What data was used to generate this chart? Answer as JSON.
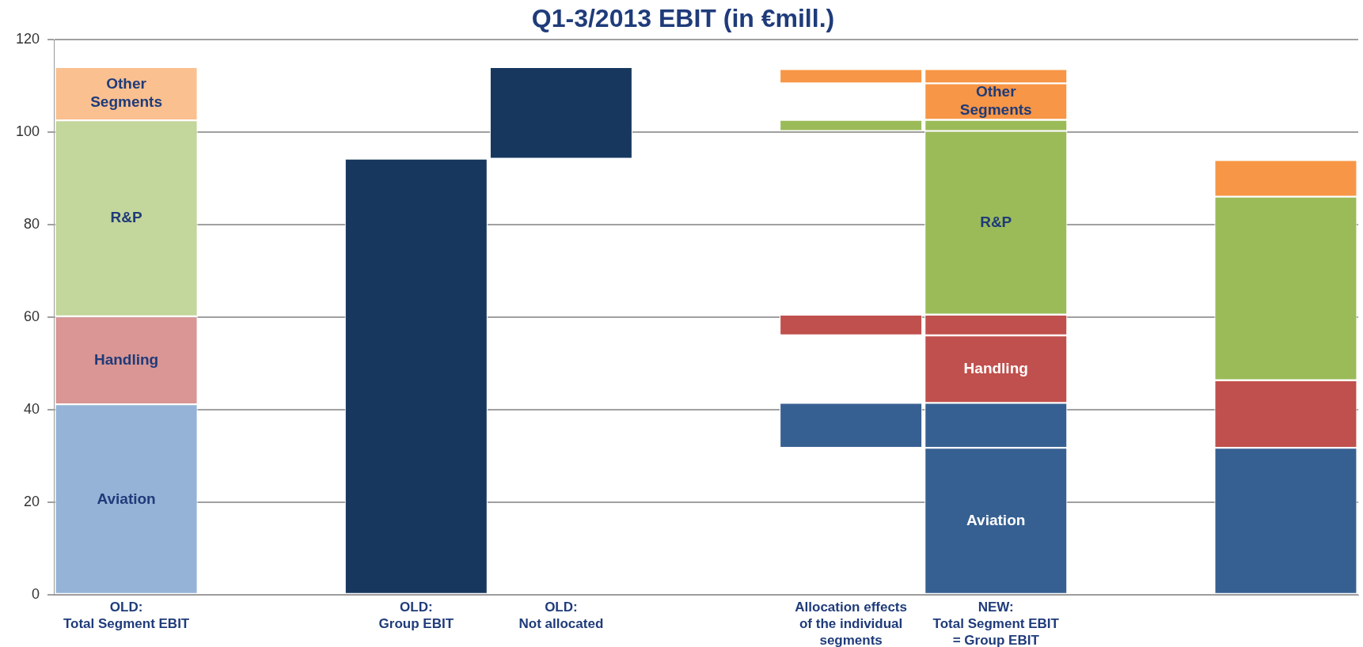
{
  "chart_data": {
    "type": "bar",
    "title": "Q1-3/2013 EBIT (in €mill.)",
    "categories": [
      "OLD:\nTotal Segment EBIT",
      null,
      "OLD:\nGroup EBIT",
      "OLD:\nNot allocated",
      null,
      "Allocation effects\nof the individual segments",
      "NEW:\nTotal Segment EBIT = Group EBIT",
      null,
      null
    ],
    "series": [
      {
        "name": "Aviation",
        "color": "#376092",
        "colors": [
          "#95b3d7",
          null,
          null,
          null,
          null,
          null,
          "#376092",
          null,
          null
        ],
        "base": [
          0,
          null,
          null,
          null,
          null,
          null,
          0,
          null,
          null
        ],
        "values": [
          41.2,
          null,
          null,
          null,
          null,
          null,
          31.8,
          null,
          null
        ]
      },
      {
        "color": "#376092",
        "base": [
          null,
          null,
          null,
          null,
          null,
          31.8,
          31.8,
          null,
          null
        ],
        "values": [
          null,
          null,
          null,
          null,
          null,
          9.7,
          9.7,
          null,
          null
        ]
      },
      {
        "color": "#376092",
        "base": [
          null,
          null,
          null,
          null,
          null,
          null,
          null,
          null,
          0
        ],
        "values": [
          null,
          null,
          null,
          null,
          null,
          null,
          null,
          null,
          31.8
        ]
      },
      {
        "name": "Handling",
        "color": "#c0504d",
        "colors": [
          "#d99694",
          null,
          null,
          null,
          null,
          null,
          "#c0504d",
          null,
          null
        ],
        "base": [
          41.2,
          null,
          null,
          null,
          null,
          null,
          41.5,
          null,
          null
        ],
        "values": [
          19.0,
          null,
          null,
          null,
          null,
          null,
          14.6,
          null,
          null
        ]
      },
      {
        "color": "#c0504d",
        "base": [
          null,
          null,
          null,
          null,
          null,
          56.1,
          56.1,
          null,
          null
        ],
        "values": [
          null,
          null,
          null,
          null,
          null,
          4.5,
          4.5,
          null,
          null
        ]
      },
      {
        "color": "#c0504d",
        "base": [
          null,
          null,
          null,
          null,
          null,
          null,
          null,
          null,
          31.8
        ],
        "values": [
          null,
          null,
          null,
          null,
          null,
          null,
          null,
          null,
          14.6
        ]
      },
      {
        "name": "R&P",
        "color": "#9bbb59",
        "colors": [
          "#c3d69b",
          null,
          null,
          null,
          null,
          null,
          "#9bbb59",
          null,
          null
        ],
        "base": [
          60.2,
          null,
          null,
          null,
          null,
          null,
          60.6,
          null,
          null
        ],
        "values": [
          42.4,
          null,
          null,
          null,
          null,
          null,
          39.7,
          null,
          null
        ]
      },
      {
        "color": "#9bbb59",
        "base": [
          null,
          null,
          null,
          null,
          null,
          100.3,
          100.3,
          null,
          null
        ],
        "values": [
          null,
          null,
          null,
          null,
          null,
          2.4,
          2.4,
          null,
          null
        ]
      },
      {
        "color": "#9bbb59",
        "base": [
          null,
          null,
          null,
          null,
          null,
          null,
          null,
          null,
          46.4
        ],
        "values": [
          null,
          null,
          null,
          null,
          null,
          null,
          null,
          null,
          39.7
        ]
      },
      {
        "name": "Other\nSegments",
        "color": "#f79646",
        "colors": [
          "#fac090",
          null,
          null,
          null,
          null,
          null,
          "#f79646",
          null,
          null
        ],
        "base": [
          102.6,
          null,
          null,
          null,
          null,
          null,
          102.7,
          null,
          null
        ],
        "values": [
          11.5,
          null,
          null,
          null,
          null,
          null,
          7.9,
          null,
          null
        ]
      },
      {
        "color": "#f79646",
        "base": [
          null,
          null,
          null,
          null,
          null,
          110.6,
          110.6,
          null,
          null
        ],
        "values": [
          null,
          null,
          null,
          null,
          null,
          3.1,
          3.1,
          null,
          null
        ]
      },
      {
        "color": "#f79646",
        "base": [
          null,
          null,
          null,
          null,
          null,
          null,
          null,
          null,
          86.1
        ],
        "values": [
          null,
          null,
          null,
          null,
          null,
          null,
          null,
          null,
          7.9
        ]
      },
      {
        "color": "#17375e",
        "base": [
          null,
          null,
          0,
          94.3,
          null,
          null,
          null,
          null,
          null
        ],
        "values": [
          null,
          null,
          94.3,
          19.8,
          null,
          null,
          null,
          null,
          null
        ]
      }
    ],
    "ylim": [
      0,
      120
    ],
    "yticks": [
      0,
      20,
      40,
      60,
      80,
      100,
      120
    ],
    "grid": "y",
    "legend": false
  }
}
